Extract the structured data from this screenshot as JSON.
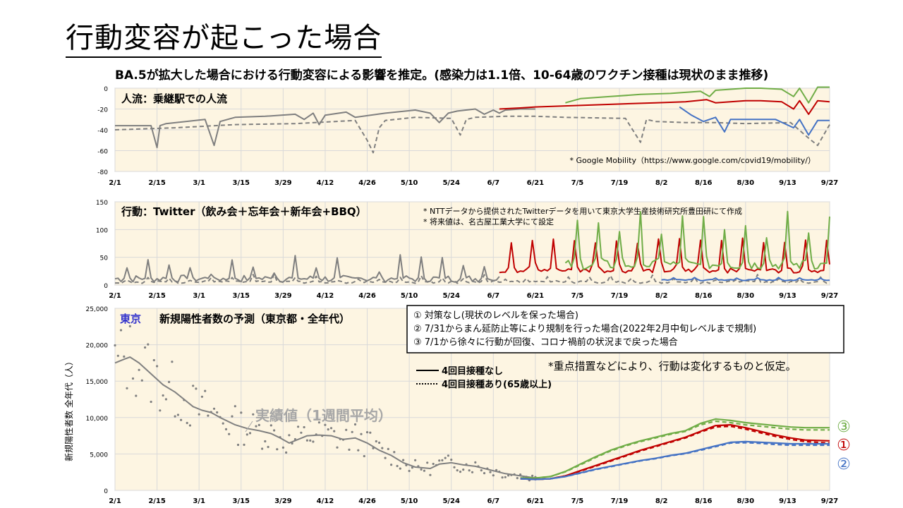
{
  "slide": {
    "title": "行動変容が起こった場合",
    "subtitle": "BA.5が拡大した場合における行動変容による影響を推定。(感染力は1.1倍、10-64歳のワクチン接種は現状のまま推移)"
  },
  "chart_data": [
    {
      "type": "line",
      "title": "人流：乗継駅での人流",
      "ylim": [
        -80,
        0
      ],
      "yticks": [
        "0",
        "-20",
        "-40",
        "-60",
        "-80"
      ],
      "categories": [
        "2/1",
        "2/15",
        "3/1",
        "3/15",
        "3/29",
        "4/12",
        "4/26",
        "5/10",
        "5/24",
        "6/7",
        "6/21",
        "7/5",
        "7/19",
        "8/2",
        "8/16",
        "8/30",
        "9/13",
        "9/27"
      ],
      "annotation": "* Google Mobility（https://www.google.com/covid19/mobility/）",
      "series": [
        {
          "color": "#7f7f7f",
          "style": "solid",
          "x": [
            0,
            12,
            14,
            15,
            17,
            30,
            33,
            35,
            40,
            50,
            60,
            63,
            66,
            68,
            70,
            77,
            80,
            90,
            100,
            105,
            108,
            111,
            114,
            120,
            123,
            126,
            128,
            130,
            135,
            140
          ],
          "values": [
            -36,
            -36,
            -57,
            -36,
            -34,
            -30,
            -55,
            -32,
            -28,
            -27,
            -25,
            -30,
            -24,
            -35,
            -26,
            -23,
            -28,
            -24,
            -21,
            -24,
            -33,
            -24,
            -22,
            -20,
            -25,
            -21,
            -24,
            -21,
            -20,
            -20
          ]
        },
        {
          "color": "#7f7f7f",
          "style": "dashed",
          "x": [
            0,
            20,
            40,
            60,
            80,
            84,
            86,
            88,
            90,
            100,
            112,
            115,
            117,
            120,
            130,
            140,
            150,
            170,
            175,
            177,
            180,
            190,
            200,
            210,
            225,
            231,
            234,
            238
          ],
          "values": [
            -40,
            -38,
            -35,
            -34,
            -31,
            -50,
            -62,
            -38,
            -31,
            -28,
            -29,
            -45,
            -30,
            -28,
            -27,
            -27,
            -28,
            -29,
            -52,
            -30,
            -32,
            -33,
            -33,
            -34,
            -33,
            -48,
            -55,
            -35
          ]
        },
        {
          "color": "#c00000",
          "style": "solid",
          "x": [
            128,
            135,
            140,
            150,
            160,
            170,
            180,
            190,
            197,
            200,
            210,
            215,
            222,
            226,
            228,
            231,
            234,
            238
          ],
          "values": [
            -20,
            -19,
            -18,
            -17,
            -16,
            -15,
            -14,
            -13,
            -11,
            -14,
            -12,
            -12,
            -13,
            -20,
            -12,
            -25,
            -12,
            -13
          ]
        },
        {
          "color": "#70ad47",
          "style": "solid",
          "x": [
            150,
            155,
            165,
            175,
            185,
            195,
            198,
            200,
            205,
            210,
            215,
            222,
            226,
            228,
            231,
            234,
            238
          ],
          "values": [
            -14,
            -10,
            -8,
            -6,
            -5,
            -3,
            -8,
            -2,
            -1,
            0,
            0,
            -1,
            -8,
            0,
            -14,
            1,
            1
          ]
        },
        {
          "color": "#4472c4",
          "style": "solid",
          "x": [
            188,
            192,
            196,
            200,
            203,
            205,
            210,
            215,
            220,
            226,
            228,
            231,
            234,
            238
          ],
          "values": [
            -18,
            -26,
            -32,
            -28,
            -42,
            -30,
            -30,
            -30,
            -30,
            -38,
            -30,
            -45,
            -31,
            -31
          ]
        }
      ]
    },
    {
      "type": "line",
      "title": "行動：Twitter（飲み会＋忘年会＋新年会+BBQ）",
      "ylim": [
        0,
        150
      ],
      "yticks": [
        "150",
        "100",
        "50",
        "0"
      ],
      "categories": [
        "2/1",
        "2/15",
        "3/1",
        "3/15",
        "3/29",
        "4/12",
        "4/26",
        "5/10",
        "5/24",
        "6/7",
        "6/21",
        "7/5",
        "7/19",
        "8/2",
        "8/16",
        "8/30",
        "9/13",
        "9/27"
      ],
      "notes": [
        "* NTTデータから提供されたTwitterデータを用いて東京大学生産技術研究所豊田研にて作成",
        "* 将来値は、名古屋工業大学にて設定"
      ],
      "series": [
        {
          "color": "#7f7f7f",
          "style": "solid",
          "weekly_peaks": {
            "start": 0,
            "end": 128,
            "base": [
              5,
              18
            ],
            "peak": [
              12,
              55
            ]
          }
        },
        {
          "color": "#7f7f7f",
          "style": "dashed",
          "weekly_peaks": {
            "start": 0,
            "end": 238,
            "base": [
              3,
              8
            ],
            "peak": [
              8,
              20
            ]
          }
        },
        {
          "color": "#c00000",
          "style": "solid",
          "weekly_peaks": {
            "start": 128,
            "end": 238,
            "base": [
              22,
              30
            ],
            "peak": [
              75,
              85
            ]
          }
        },
        {
          "color": "#70ad47",
          "style": "solid",
          "weekly_peaks": {
            "start": 150,
            "end": 238,
            "base": [
              28,
              45
            ],
            "peak": [
              80,
              135
            ]
          }
        },
        {
          "color": "#4472c4",
          "style": "solid",
          "weekly_peaks": {
            "start": 182,
            "end": 238,
            "base": [
              8,
              10
            ],
            "peak": [
              12,
              14
            ]
          }
        }
      ]
    },
    {
      "type": "line",
      "title_region": "東京",
      "title": "新規陽性者数の予測（東京都・全年代）",
      "ylabel": "新規陽性者数 全年代（人）",
      "ylim": [
        0,
        25000
      ],
      "yticks": [
        "25,000",
        "20,000",
        "15,000",
        "10,000",
        "5,000",
        "0"
      ],
      "categories": [
        "2/1",
        "2/15",
        "3/1",
        "3/15",
        "3/29",
        "4/12",
        "4/26",
        "5/10",
        "5/24",
        "6/7",
        "6/21",
        "7/5",
        "7/19",
        "8/2",
        "8/16",
        "8/30",
        "9/13",
        "9/27"
      ],
      "legend_box": [
        "① 対策なし(現状のレベルを保った場合)",
        "② 7/31からまん延防止等により規制を行った場合(2022年2月中旬レベルまで規制)",
        "③ 7/1から徐々に行動が回復、コロナ禍前の状況まで戻った場合"
      ],
      "note": "*重点措置などにより、行動は変化するものと仮定。",
      "line_legend": [
        "4回目接種なし",
        "4回目接種あり(65歳以上)"
      ],
      "actual_label": "実績値（1週間平均）",
      "series_labels": [
        "③",
        "①",
        "②"
      ],
      "series": [
        {
          "name": "実績値（1週間平均）",
          "color": "#808080",
          "style": "solid",
          "x": [
            0,
            3,
            5,
            8,
            12,
            16,
            20,
            23,
            26,
            29,
            32,
            35,
            40,
            44,
            48,
            52,
            55,
            58,
            61,
            64,
            68,
            72,
            76,
            80,
            84,
            88,
            92,
            96,
            100,
            105,
            108,
            112,
            116,
            120,
            125,
            130,
            135,
            140
          ],
          "values": [
            17500,
            18000,
            18300,
            17500,
            16000,
            14500,
            13500,
            12500,
            11500,
            11000,
            10700,
            10000,
            9000,
            8500,
            8200,
            7800,
            7200,
            6500,
            7000,
            7500,
            7600,
            7500,
            7000,
            7200,
            6500,
            5500,
            4800,
            3800,
            3200,
            3000,
            3600,
            3800,
            3500,
            3300,
            2800,
            2300,
            2000,
            1700
          ]
        },
        {
          "name": "③",
          "color": "#70ad47",
          "style": "solid",
          "x": [
            135,
            140,
            145,
            150,
            155,
            160,
            165,
            170,
            175,
            180,
            185,
            190,
            195,
            200,
            205,
            210,
            215,
            220,
            225,
            230,
            238
          ],
          "values": [
            1700,
            1700,
            1900,
            2600,
            3600,
            4600,
            5500,
            6200,
            6800,
            7300,
            7800,
            8200,
            9200,
            9800,
            9600,
            9300,
            9100,
            8900,
            8700,
            8600,
            8600
          ]
        },
        {
          "name": "③ (4回目接種あり)",
          "color": "#70ad47",
          "style": "dashed",
          "x": [
            135,
            140,
            145,
            150,
            155,
            160,
            165,
            170,
            175,
            180,
            185,
            190,
            195,
            200,
            205,
            210,
            215,
            220,
            225,
            230,
            238
          ],
          "values": [
            1700,
            1700,
            1900,
            2550,
            3500,
            4500,
            5400,
            6100,
            6700,
            7200,
            7700,
            8100,
            9000,
            9500,
            9300,
            9000,
            8800,
            8600,
            8400,
            8300,
            8300
          ]
        },
        {
          "name": "①",
          "color": "#c00000",
          "style": "solid",
          "x": [
            135,
            140,
            145,
            150,
            155,
            160,
            165,
            170,
            175,
            180,
            185,
            190,
            195,
            200,
            205,
            210,
            215,
            220,
            225,
            230,
            238
          ],
          "values": [
            1600,
            1500,
            1600,
            2000,
            2700,
            3400,
            4100,
            4800,
            5500,
            6100,
            6700,
            7300,
            8100,
            8900,
            9000,
            8600,
            8100,
            7600,
            7200,
            6900,
            6800
          ]
        },
        {
          "name": "① (4回目接種あり)",
          "color": "#c00000",
          "style": "dashed",
          "x": [
            135,
            140,
            145,
            150,
            155,
            160,
            165,
            170,
            175,
            180,
            185,
            190,
            195,
            200,
            205,
            210,
            215,
            220,
            225,
            230,
            238
          ],
          "values": [
            1600,
            1500,
            1600,
            2000,
            2650,
            3300,
            4000,
            4700,
            5400,
            6000,
            6600,
            7200,
            8000,
            8700,
            8800,
            8400,
            7900,
            7400,
            7000,
            6700,
            6500
          ]
        },
        {
          "name": "②",
          "color": "#4472c4",
          "style": "solid",
          "x": [
            135,
            140,
            145,
            150,
            155,
            160,
            165,
            170,
            175,
            180,
            185,
            190,
            195,
            200,
            205,
            210,
            215,
            220,
            225,
            230,
            238
          ],
          "values": [
            1600,
            1500,
            1600,
            1900,
            2400,
            2900,
            3300,
            3700,
            4100,
            4400,
            4800,
            5100,
            5600,
            6100,
            6600,
            6700,
            6600,
            6500,
            6400,
            6400,
            6400
          ]
        },
        {
          "name": "② (4回目接種あり)",
          "color": "#4472c4",
          "style": "dashed",
          "x": [
            135,
            140,
            145,
            150,
            155,
            160,
            165,
            170,
            175,
            180,
            185,
            190,
            195,
            200,
            205,
            210,
            215,
            220,
            225,
            230,
            238
          ],
          "values": [
            1600,
            1500,
            1600,
            1900,
            2350,
            2850,
            3250,
            3650,
            4050,
            4350,
            4750,
            5050,
            5500,
            6000,
            6500,
            6550,
            6450,
            6300,
            6200,
            6200,
            6200
          ]
        }
      ]
    }
  ]
}
